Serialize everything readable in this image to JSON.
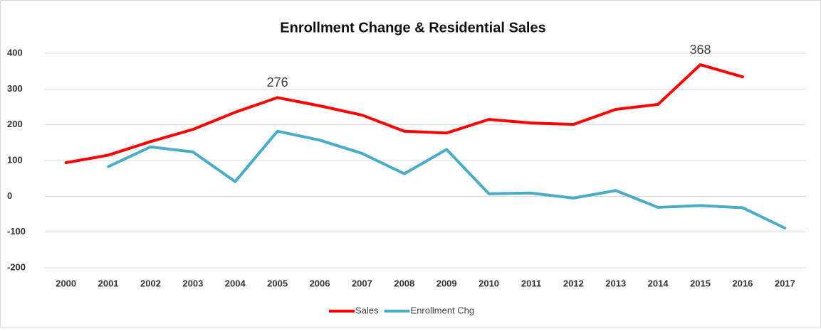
{
  "chart_data": {
    "type": "line",
    "title": "Enrollment Change & Residential Sales",
    "categories": [
      "2000",
      "2001",
      "2002",
      "2003",
      "2004",
      "2005",
      "2006",
      "2007",
      "2008",
      "2009",
      "2010",
      "2011",
      "2012",
      "2013",
      "2014",
      "2015",
      "2016",
      "2017"
    ],
    "series": [
      {
        "name": "Sales",
        "color": "#ff0000",
        "values": [
          94,
          115,
          153,
          187,
          235,
          276,
          253,
          227,
          182,
          177,
          215,
          205,
          201,
          243,
          257,
          368,
          334,
          null
        ],
        "value_labels": [
          null,
          null,
          null,
          null,
          null,
          "276",
          null,
          null,
          null,
          null,
          null,
          null,
          null,
          null,
          null,
          "368",
          null,
          null
        ]
      },
      {
        "name": "Enrollment Chg",
        "color": "#4bacc6",
        "values": [
          null,
          83,
          138,
          124,
          41,
          182,
          157,
          120,
          63,
          131,
          7,
          9,
          -5,
          16,
          -31,
          -26,
          -32,
          -89
        ]
      }
    ],
    "ylim": [
      -200,
      400
    ],
    "yticks": [
      -200,
      -100,
      0,
      100,
      200,
      300,
      400
    ],
    "grid": true,
    "legend": "bottom"
  }
}
